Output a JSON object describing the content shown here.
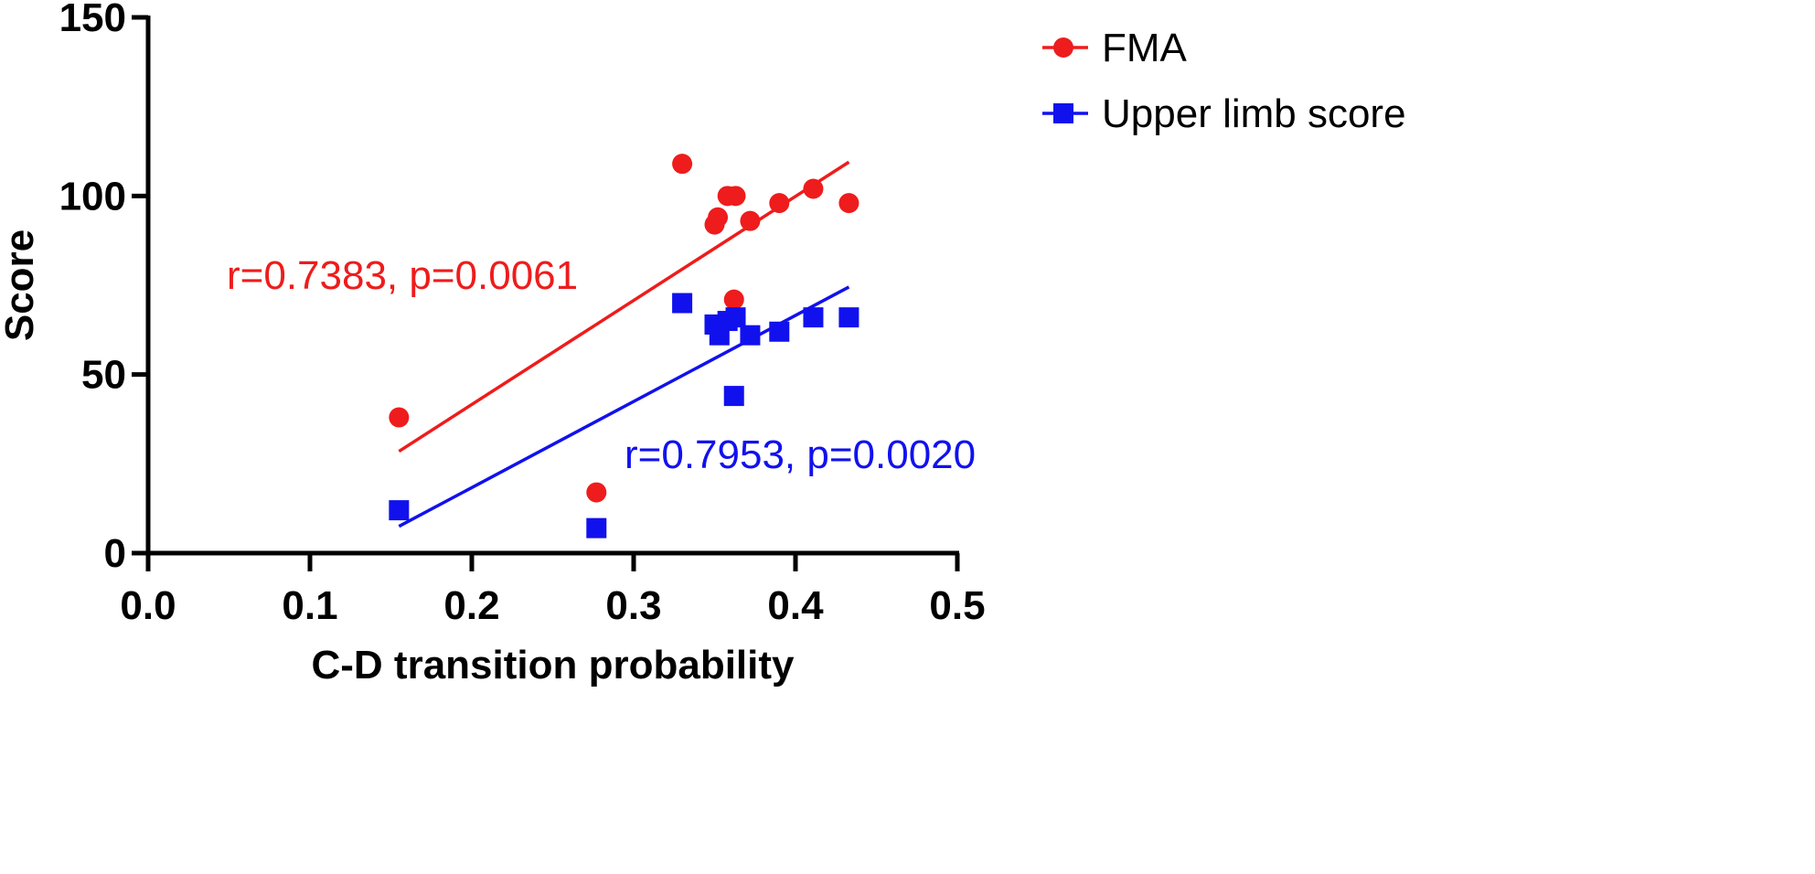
{
  "chart_data": {
    "type": "scatter",
    "title": "",
    "xlabel": "C-D transition probability",
    "ylabel": "Score",
    "xlim": [
      0.0,
      0.5
    ],
    "ylim": [
      0,
      150
    ],
    "xticks": [
      0.0,
      0.1,
      0.2,
      0.3,
      0.4,
      0.5
    ],
    "xtick_labels": [
      "0.0",
      "0.1",
      "0.2",
      "0.3",
      "0.4",
      "0.5"
    ],
    "yticks": [
      0,
      50,
      100,
      150
    ],
    "ytick_labels": [
      "0",
      "50",
      "100",
      "150"
    ],
    "grid": false,
    "legend_position": "top-right",
    "series": [
      {
        "name": "FMA",
        "marker": "circle",
        "color": "#ee1c1c",
        "x": [
          0.155,
          0.277,
          0.33,
          0.35,
          0.352,
          0.358,
          0.362,
          0.363,
          0.372,
          0.39,
          0.411,
          0.433
        ],
        "y": [
          38,
          17,
          109,
          92,
          94,
          100,
          71,
          100,
          93,
          98,
          102,
          98
        ],
        "fit": {
          "x": [
            0.155,
            0.433
          ],
          "y": [
            28.5,
            109.5
          ]
        },
        "annotation": "r=0.7383, p=0.0061"
      },
      {
        "name": "Upper limb score",
        "marker": "square",
        "color": "#1111ee",
        "x": [
          0.155,
          0.277,
          0.33,
          0.35,
          0.353,
          0.358,
          0.362,
          0.363,
          0.372,
          0.39,
          0.411,
          0.433
        ],
        "y": [
          12,
          7,
          70,
          64,
          61,
          65,
          44,
          66,
          61,
          62,
          66,
          66
        ],
        "fit": {
          "x": [
            0.155,
            0.433
          ],
          "y": [
            7.5,
            74.5
          ]
        },
        "annotation": "r=0.7953, p=0.0020"
      }
    ]
  }
}
